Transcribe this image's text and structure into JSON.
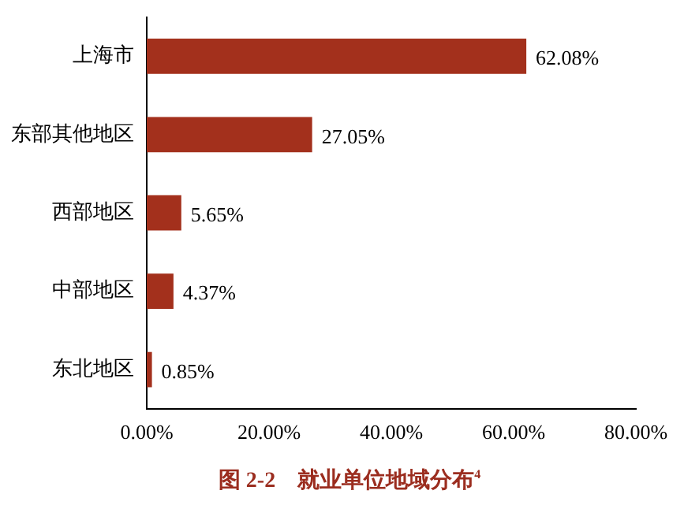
{
  "chart_data": {
    "type": "bar",
    "orientation": "horizontal",
    "title": "图 2-2　就业单位地域分布$^{4}$",
    "categories": [
      "上海市",
      "东部其他地区",
      "西部地区",
      "中部地区",
      "东北地区"
    ],
    "values": [
      62.08,
      27.05,
      5.65,
      4.37,
      0.85
    ],
    "value_labels": [
      "62.08%",
      "27.05%",
      "5.65%",
      "4.37%",
      "0.85%"
    ],
    "color": "#a3301c",
    "xlim": [
      0,
      80
    ],
    "xticks": [
      {
        "value": 0,
        "label": "0.00%"
      },
      {
        "value": 20,
        "label": "20.00%"
      },
      {
        "value": 40,
        "label": "40.00%"
      },
      {
        "value": 60,
        "label": "60.00%"
      },
      {
        "value": 80,
        "label": "80.00%"
      }
    ],
    "grid": false
  }
}
